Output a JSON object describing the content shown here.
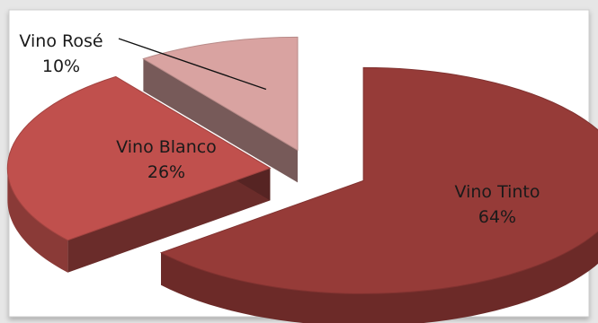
{
  "chart_data": {
    "type": "pie",
    "style": "3d-exploded",
    "title": "",
    "slices": [
      {
        "name": "Vino Tinto",
        "value": 64,
        "label": "64%",
        "color": "#963b38"
      },
      {
        "name": "Vino Blanco",
        "value": 26,
        "label": "26%",
        "color": "#c0504d"
      },
      {
        "name": "Vino Rosé",
        "value": 10,
        "label": "10%",
        "color": "#d9a3a1"
      }
    ],
    "legend": "none"
  }
}
